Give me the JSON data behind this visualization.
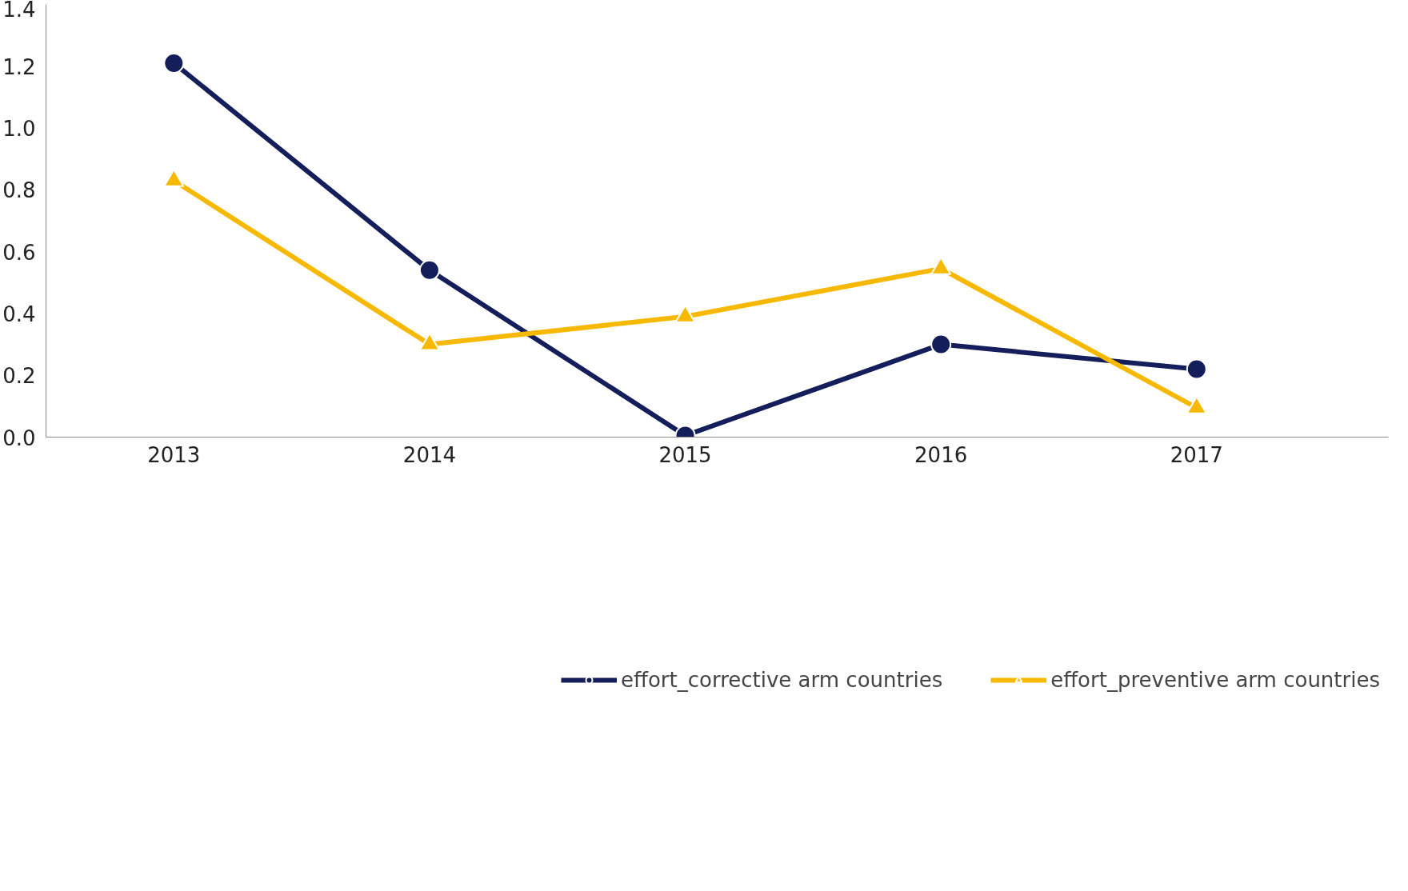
{
  "chart_data": {
    "type": "line",
    "categories": [
      "2013",
      "2014",
      "2015",
      "2016",
      "2017"
    ],
    "series": [
      {
        "name": "effort_corrective arm countries",
        "color": "#141e5a",
        "marker": "circle",
        "values": [
          1.21,
          0.54,
          0.005,
          0.3,
          0.22
        ]
      },
      {
        "name": "effort_preventive arm countries",
        "color": "#f7b900",
        "marker": "triangle",
        "values": [
          0.83,
          0.3,
          0.39,
          0.545,
          0.095
        ]
      }
    ],
    "ylim": [
      0,
      1.4
    ],
    "yticks": [
      {
        "value": 0,
        "label": "0.0"
      },
      0.2,
      0.4,
      0.6,
      0.8,
      {
        "value": 1,
        "label": "1.0"
      },
      1.2,
      1.4
    ],
    "grid": false,
    "legend": "bottom",
    "line_style": "solid"
  }
}
